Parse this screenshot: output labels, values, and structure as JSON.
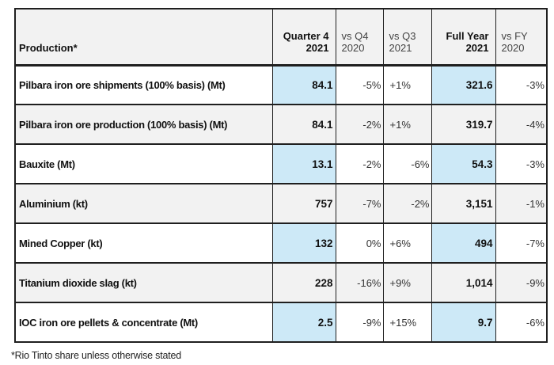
{
  "colors": {
    "highlight_blue": "#cde9f7",
    "stripe_gray": "#f2f2f2",
    "border_dark": "#1f1f1f"
  },
  "chart_data": {
    "type": "table",
    "header": {
      "production": "Production*",
      "quarter4": {
        "line1": "Quarter 4",
        "line2": "2021"
      },
      "vs_q4": {
        "line1": "vs Q4",
        "line2": "2020"
      },
      "vs_q3": {
        "line1": "vs Q3",
        "line2": "2021"
      },
      "full_year": {
        "line1": "Full Year",
        "line2": "2021"
      },
      "vs_fy": {
        "line1": "vs FY",
        "line2": "2020"
      }
    },
    "rows": [
      {
        "label": "Pilbara iron ore shipments (100% basis) (Mt)",
        "q4_2021": "84.1",
        "vs_q4_2020": "-5%",
        "vs_q3_2021": "+1%",
        "full_year_2021": "321.6",
        "vs_fy_2020": "-3%"
      },
      {
        "label": "Pilbara iron ore production (100% basis) (Mt)",
        "q4_2021": "84.1",
        "vs_q4_2020": "-2%",
        "vs_q3_2021": "+1%",
        "full_year_2021": "319.7",
        "vs_fy_2020": "-4%"
      },
      {
        "label": "Bauxite (Mt)",
        "q4_2021": "13.1",
        "vs_q4_2020": "-2%",
        "vs_q3_2021": "-6%",
        "full_year_2021": "54.3",
        "vs_fy_2020": "-3%"
      },
      {
        "label": "Aluminium (kt)",
        "q4_2021": "757",
        "vs_q4_2020": "-7%",
        "vs_q3_2021": "-2%",
        "full_year_2021": "3,151",
        "vs_fy_2020": "-1%"
      },
      {
        "label": "Mined Copper (kt)",
        "q4_2021": "132",
        "vs_q4_2020": "0%",
        "vs_q3_2021": "+6%",
        "full_year_2021": "494",
        "vs_fy_2020": "-7%"
      },
      {
        "label": "Titanium dioxide slag (kt)",
        "q4_2021": "228",
        "vs_q4_2020": "-16%",
        "vs_q3_2021": "+9%",
        "full_year_2021": "1,014",
        "vs_fy_2020": "-9%"
      },
      {
        "label": "IOC iron ore pellets & concentrate (Mt)",
        "q4_2021": "2.5",
        "vs_q4_2020": "-9%",
        "vs_q3_2021": "+15%",
        "full_year_2021": "9.7",
        "vs_fy_2020": "-6%"
      }
    ]
  },
  "footnote": "*Rio Tinto share unless otherwise stated"
}
